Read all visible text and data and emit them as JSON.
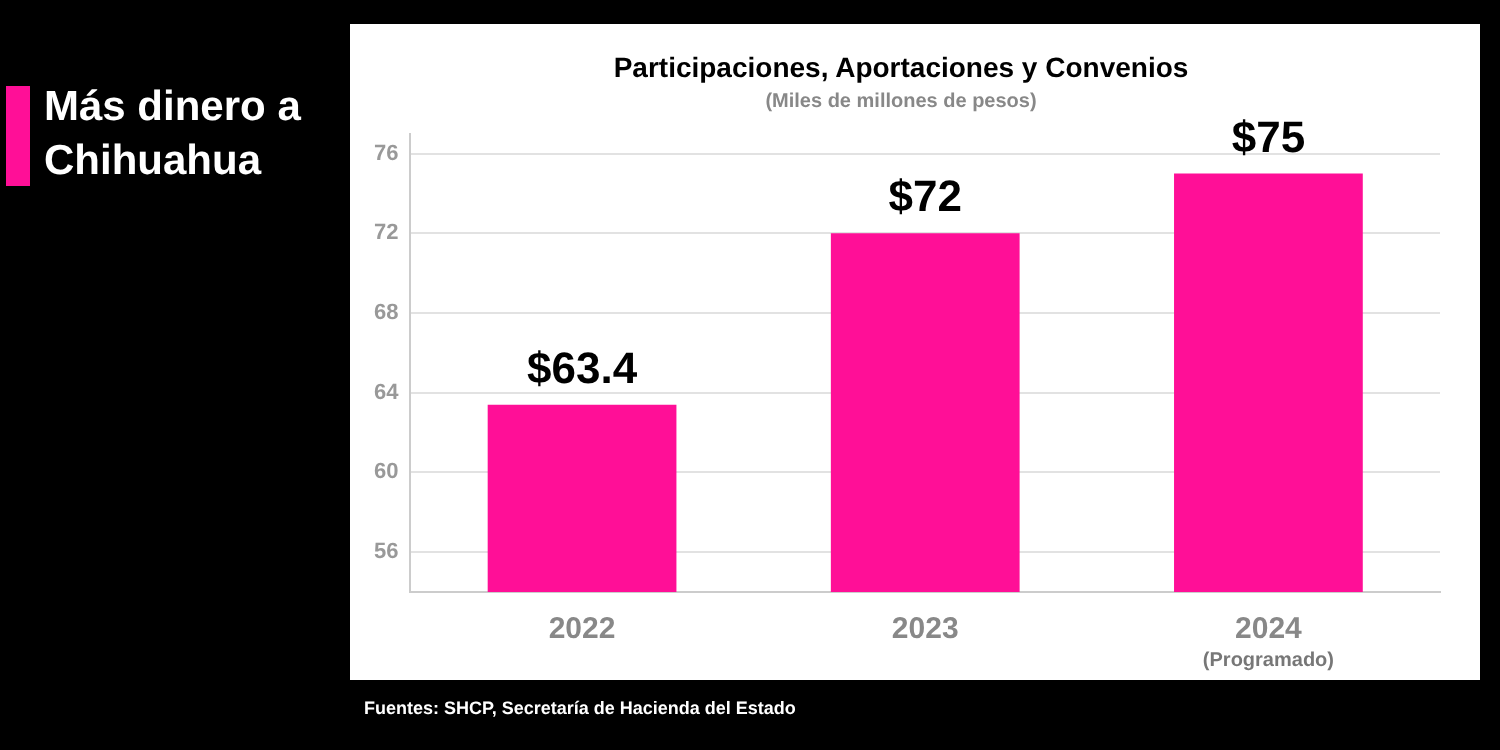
{
  "chart_data": {
    "type": "bar",
    "title": "Participaciones, Aportaciones y Convenios",
    "subtitle": "(Miles de millones de pesos)",
    "categories": [
      "2022",
      "2023",
      "2024"
    ],
    "values": [
      63.4,
      72,
      75
    ],
    "value_labels": [
      "$63.4",
      "$72",
      "$75"
    ],
    "color": "#ff0f97",
    "ylim": [
      54,
      77
    ],
    "yticks": [
      56,
      60,
      64,
      68,
      72,
      76
    ],
    "grid": "y",
    "annotations": [
      "Más dinero a Chihuahua",
      "(Programado)",
      "Fuentes: SHCP, Secretaría de Hacienda del Estado"
    ]
  }
}
